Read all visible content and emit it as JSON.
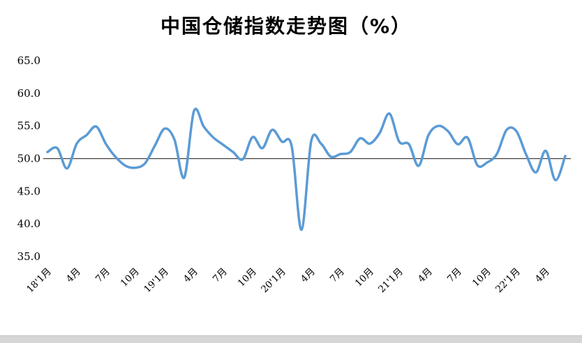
{
  "title": "中国仓储指数走势图（%）",
  "chart_data": {
    "type": "line",
    "title": "中国仓储指数走势图（%）",
    "unit": "%",
    "series_name": "中国仓储指数",
    "series_color": "#5B9BD5",
    "axis_line_color": "#404040",
    "smooth": true,
    "ylim": [
      35,
      65
    ],
    "ytick_step": 5,
    "ytick_values": [
      65,
      60,
      55,
      50,
      45,
      40,
      35
    ],
    "ytick_labels": [
      "65.0",
      "60.0",
      "55.0",
      "50.0",
      "45.0",
      "40.0",
      "35.0"
    ],
    "axis_cross_value": 50,
    "x_tick_labels": [
      "18'1月",
      "4月",
      "7月",
      "10月",
      "19'1月",
      "4月",
      "7月",
      "10月",
      "20'1月",
      "4月",
      "7月",
      "10月",
      "21'1月",
      "4月",
      "7月",
      "10月",
      "22'1月",
      "4月"
    ],
    "x_tick_indices": [
      0,
      3,
      6,
      9,
      12,
      15,
      18,
      21,
      24,
      27,
      30,
      33,
      36,
      39,
      42,
      45,
      48,
      51
    ],
    "values": [
      51.0,
      51.6,
      48.5,
      52.3,
      53.6,
      54.9,
      52.2,
      50.2,
      48.9,
      48.6,
      49.3,
      52.0,
      54.6,
      52.9,
      47.1,
      57.3,
      54.9,
      53.2,
      52.1,
      51.0,
      49.9,
      53.3,
      51.6,
      54.4,
      52.6,
      51.9,
      39.1,
      52.7,
      52.3,
      50.3,
      50.7,
      51.0,
      53.1,
      52.3,
      53.9,
      56.9,
      52.6,
      52.2,
      48.9,
      53.6,
      55.0,
      54.2,
      52.2,
      53.2,
      49.0,
      49.4,
      50.7,
      54.4,
      54.2,
      50.6,
      47.9,
      51.2,
      46.7,
      50.4
    ],
    "grid": false,
    "legend": "none"
  }
}
